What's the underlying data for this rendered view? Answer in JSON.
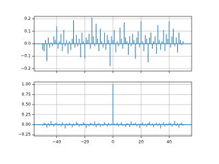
{
  "chart_data": [
    {
      "type": "bar",
      "color": "#1f77b4",
      "grid": true,
      "show_xtick_labels": false,
      "x": [
        -50,
        -49,
        -48,
        -47,
        -46,
        -45,
        -44,
        -43,
        -42,
        -41,
        -40,
        -39,
        -38,
        -37,
        -36,
        -35,
        -34,
        -33,
        -32,
        -31,
        -30,
        -29,
        -28,
        -27,
        -26,
        -25,
        -24,
        -23,
        -22,
        -21,
        -20,
        -19,
        -18,
        -17,
        -16,
        -15,
        -14,
        -13,
        -12,
        -11,
        -10,
        -9,
        -8,
        -7,
        -6,
        -5,
        -4,
        -3,
        -2,
        -1,
        0,
        1,
        2,
        3,
        4,
        5,
        6,
        7,
        8,
        9,
        10,
        11,
        12,
        13,
        14,
        15,
        16,
        17,
        18,
        19,
        20,
        21,
        22,
        23,
        24,
        25,
        26,
        27,
        28,
        29,
        30,
        31,
        32,
        33,
        34,
        35,
        36,
        37,
        38,
        39,
        40,
        41,
        42,
        43,
        44,
        45,
        46,
        47,
        48,
        49,
        50
      ],
      "values": [
        -0.05,
        -0.06,
        0.03,
        -0.14,
        0.05,
        -0.03,
        0.01,
        -0.02,
        0.06,
        0.03,
        0.14,
        -0.04,
        0.02,
        0.08,
        -0.06,
        0.11,
        -0.02,
        0.03,
        -0.08,
        0.02,
        -0.05,
        0.04,
        0.19,
        -0.03,
        0.07,
        -0.02,
        0.04,
        -0.11,
        0.09,
        0.02,
        -0.12,
        0.05,
        0.03,
        0.08,
        -0.04,
        0.21,
        0.06,
        -0.02,
        0.16,
        0.04,
        -0.06,
        0.12,
        0.02,
        -0.03,
        0.09,
        -0.05,
        0.07,
        0.03,
        -0.18,
        0.06,
        0.03,
        0.11,
        -0.07,
        0.02,
        -0.02,
        0.13,
        0.04,
        -0.04,
        0.17,
        0.05,
        0.02,
        -0.09,
        0.06,
        -0.02,
        0.08,
        0.03,
        -0.12,
        0.05,
        0.1,
        -0.03,
        0.18,
        0.02,
        -0.06,
        0.07,
        0.04,
        -0.15,
        0.05,
        0.09,
        -0.04,
        0.02,
        0.06,
        -0.08,
        0.15,
        0.03,
        -0.05,
        0.02,
        0.11,
        -0.06,
        0.08,
        0.04,
        0.18,
        -0.03,
        0.06,
        0.12,
        -0.02,
        0.05,
        -0.07,
        0.09,
        0.03,
        -0.01,
        0.02
      ],
      "xlim": [
        -56,
        56
      ],
      "xticks": [
        -40,
        -20,
        0,
        20,
        40
      ],
      "ylim": [
        -0.22,
        0.22
      ],
      "yticks": [
        {
          "value": -0.2,
          "label": "−0.2"
        },
        {
          "value": -0.1,
          "label": "−0.1"
        },
        {
          "value": 0,
          "label": "0.0"
        },
        0.1,
        0.2
      ]
    },
    {
      "type": "bar",
      "color": "#1f77b4",
      "grid": true,
      "show_xtick_labels": true,
      "x": [
        -50,
        -49,
        -48,
        -47,
        -46,
        -45,
        -44,
        -43,
        -42,
        -41,
        -40,
        -39,
        -38,
        -37,
        -36,
        -35,
        -34,
        -33,
        -32,
        -31,
        -30,
        -29,
        -28,
        -27,
        -26,
        -25,
        -24,
        -23,
        -22,
        -21,
        -20,
        -19,
        -18,
        -17,
        -16,
        -15,
        -14,
        -13,
        -12,
        -11,
        -10,
        -9,
        -8,
        -7,
        -6,
        -5,
        -4,
        -3,
        -2,
        -1,
        0,
        1,
        2,
        3,
        4,
        5,
        6,
        7,
        8,
        9,
        10,
        11,
        12,
        13,
        14,
        15,
        16,
        17,
        18,
        19,
        20,
        21,
        22,
        23,
        24,
        25,
        26,
        27,
        28,
        29,
        30,
        31,
        32,
        33,
        34,
        35,
        36,
        37,
        38,
        39,
        40,
        41,
        42,
        43,
        44,
        45,
        46,
        47,
        48,
        49,
        50
      ],
      "values": [
        -0.02,
        0.05,
        0.03,
        -0.07,
        0.04,
        -0.03,
        0.09,
        0.02,
        -0.05,
        0.04,
        0.05,
        -0.02,
        0.03,
        -0.04,
        0.06,
        0.02,
        -0.09,
        0.04,
        -0.03,
        0.05,
        0.02,
        -0.06,
        0.03,
        -0.02,
        0.07,
        0.04,
        -0.05,
        0.02,
        -0.03,
        0.06,
        0.03,
        -0.08,
        0.02,
        -0.04,
        0.05,
        0.03,
        -0.02,
        0.08,
        -0.06,
        0.02,
        0.04,
        -0.05,
        0.01,
        -0.03,
        0.06,
        0.02,
        -0.04,
        0.05,
        -0.02,
        0.03,
        1.0,
        0.03,
        -0.02,
        0.05,
        -0.04,
        0.02,
        0.06,
        -0.03,
        0.01,
        -0.05,
        0.04,
        0.02,
        -0.06,
        0.08,
        -0.02,
        0.03,
        0.05,
        -0.04,
        0.02,
        -0.08,
        0.03,
        0.06,
        -0.03,
        0.02,
        -0.05,
        0.04,
        0.07,
        -0.02,
        0.03,
        -0.06,
        0.02,
        0.05,
        -0.03,
        0.04,
        -0.09,
        0.02,
        0.06,
        -0.04,
        0.03,
        -0.02,
        0.05,
        0.04,
        -0.05,
        0.02,
        0.09,
        -0.03,
        0.04,
        -0.07,
        0.03,
        0.05,
        -0.02
      ],
      "xlim": [
        -56,
        56
      ],
      "xticks": [
        {
          "value": -40,
          "label": "−40"
        },
        {
          "value": -20,
          "label": "−20"
        },
        0,
        20,
        40
      ],
      "ylim": [
        -0.28,
        1.06
      ],
      "yticks": [
        {
          "value": -0.25,
          "label": "−0.25"
        },
        {
          "value": 0,
          "label": "0.00"
        },
        0.25,
        {
          "value": 0.5,
          "label": "0.50"
        },
        {
          "value": 0.75,
          "label": "0.75"
        },
        {
          "value": 1,
          "label": "1.00"
        }
      ]
    }
  ]
}
